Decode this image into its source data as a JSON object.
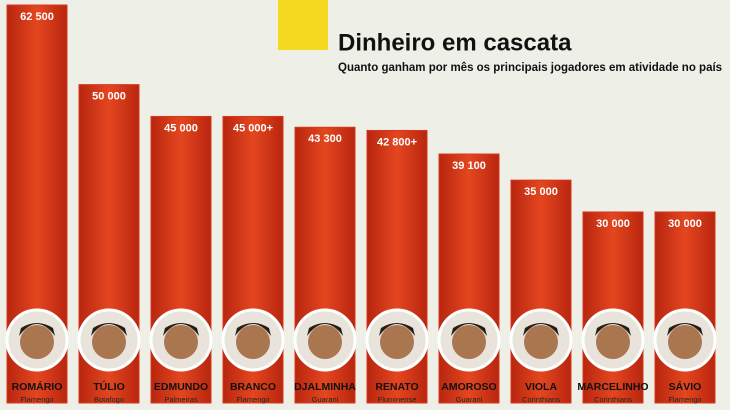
{
  "chart_data": {
    "type": "bar",
    "title": "Dinheiro em cascata",
    "subtitle": "Quanto ganham por mês os principais jogadores em atividade no país",
    "categories": [
      "ROMÁRIO",
      "TÚLIO",
      "EDMUNDO",
      "BRANCO",
      "DJALMINHA",
      "RENATO",
      "AMOROSO",
      "VIOLA",
      "MARCELINHO",
      "SÁVIO"
    ],
    "clubs": [
      "Flamengo",
      "Botafogo",
      "Palmeiras",
      "Flamengo",
      "Guarani",
      "Fluminense",
      "Guarani",
      "Corinthians",
      "Corinthians",
      "Flamengo"
    ],
    "values": [
      62500,
      50000,
      45000,
      45000,
      43300,
      42800,
      39100,
      35000,
      30000,
      30000
    ],
    "value_labels": [
      "62 500",
      "50 000",
      "45 000",
      "45 000+",
      "43 300",
      "42 800+",
      "39 100",
      "35 000",
      "30 000",
      "30 000"
    ],
    "color": "#d9381e",
    "ylim": [
      0,
      62500
    ]
  }
}
